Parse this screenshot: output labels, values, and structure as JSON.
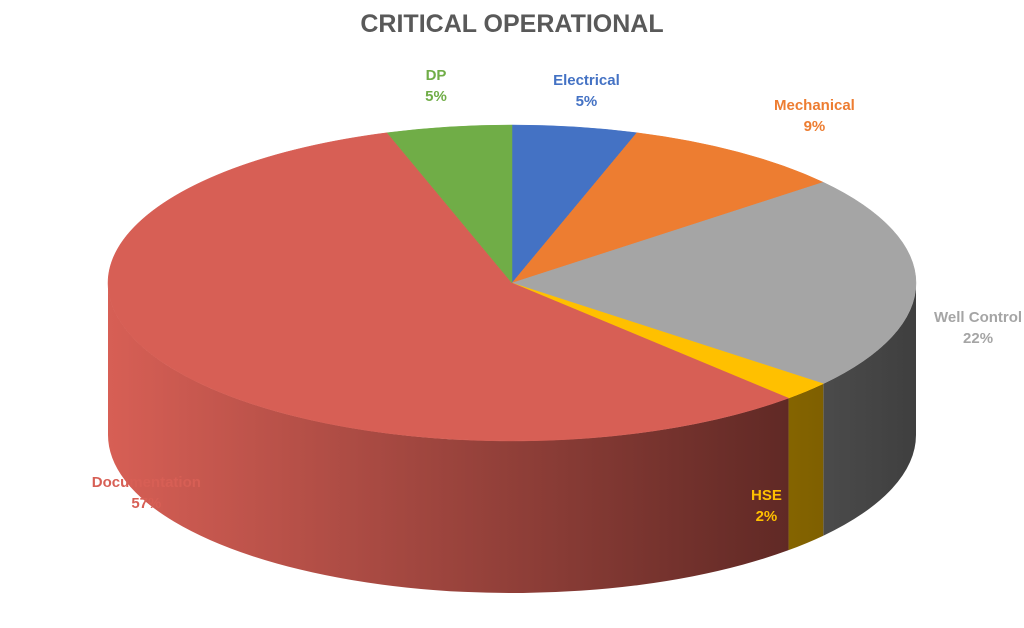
{
  "chart_data": {
    "type": "pie",
    "title": "CRITICAL OPERATIONAL",
    "slices": [
      {
        "name": "Electrical",
        "value": 5,
        "label": "5%",
        "color": "#4472C4",
        "dark": "#1F3A6B"
      },
      {
        "name": "Mechanical",
        "value": 9,
        "label": "9%",
        "color": "#ED7D31",
        "dark": "#7A3D12"
      },
      {
        "name": "Well Control",
        "value": 22,
        "label": "22%",
        "color": "#A5A5A5",
        "dark": "#3F3F3F"
      },
      {
        "name": "HSE",
        "value": 2,
        "label": "2%",
        "color": "#FFC000",
        "dark": "#6E5300"
      },
      {
        "name": "Documentation",
        "value": 57,
        "label": "57%",
        "color": "#D75F55",
        "dark": "#4A1F1C"
      },
      {
        "name": "DP",
        "value": 5,
        "label": "5%",
        "color": "#70AD47",
        "dark": "#2F4D1C"
      }
    ],
    "legend": "none"
  }
}
